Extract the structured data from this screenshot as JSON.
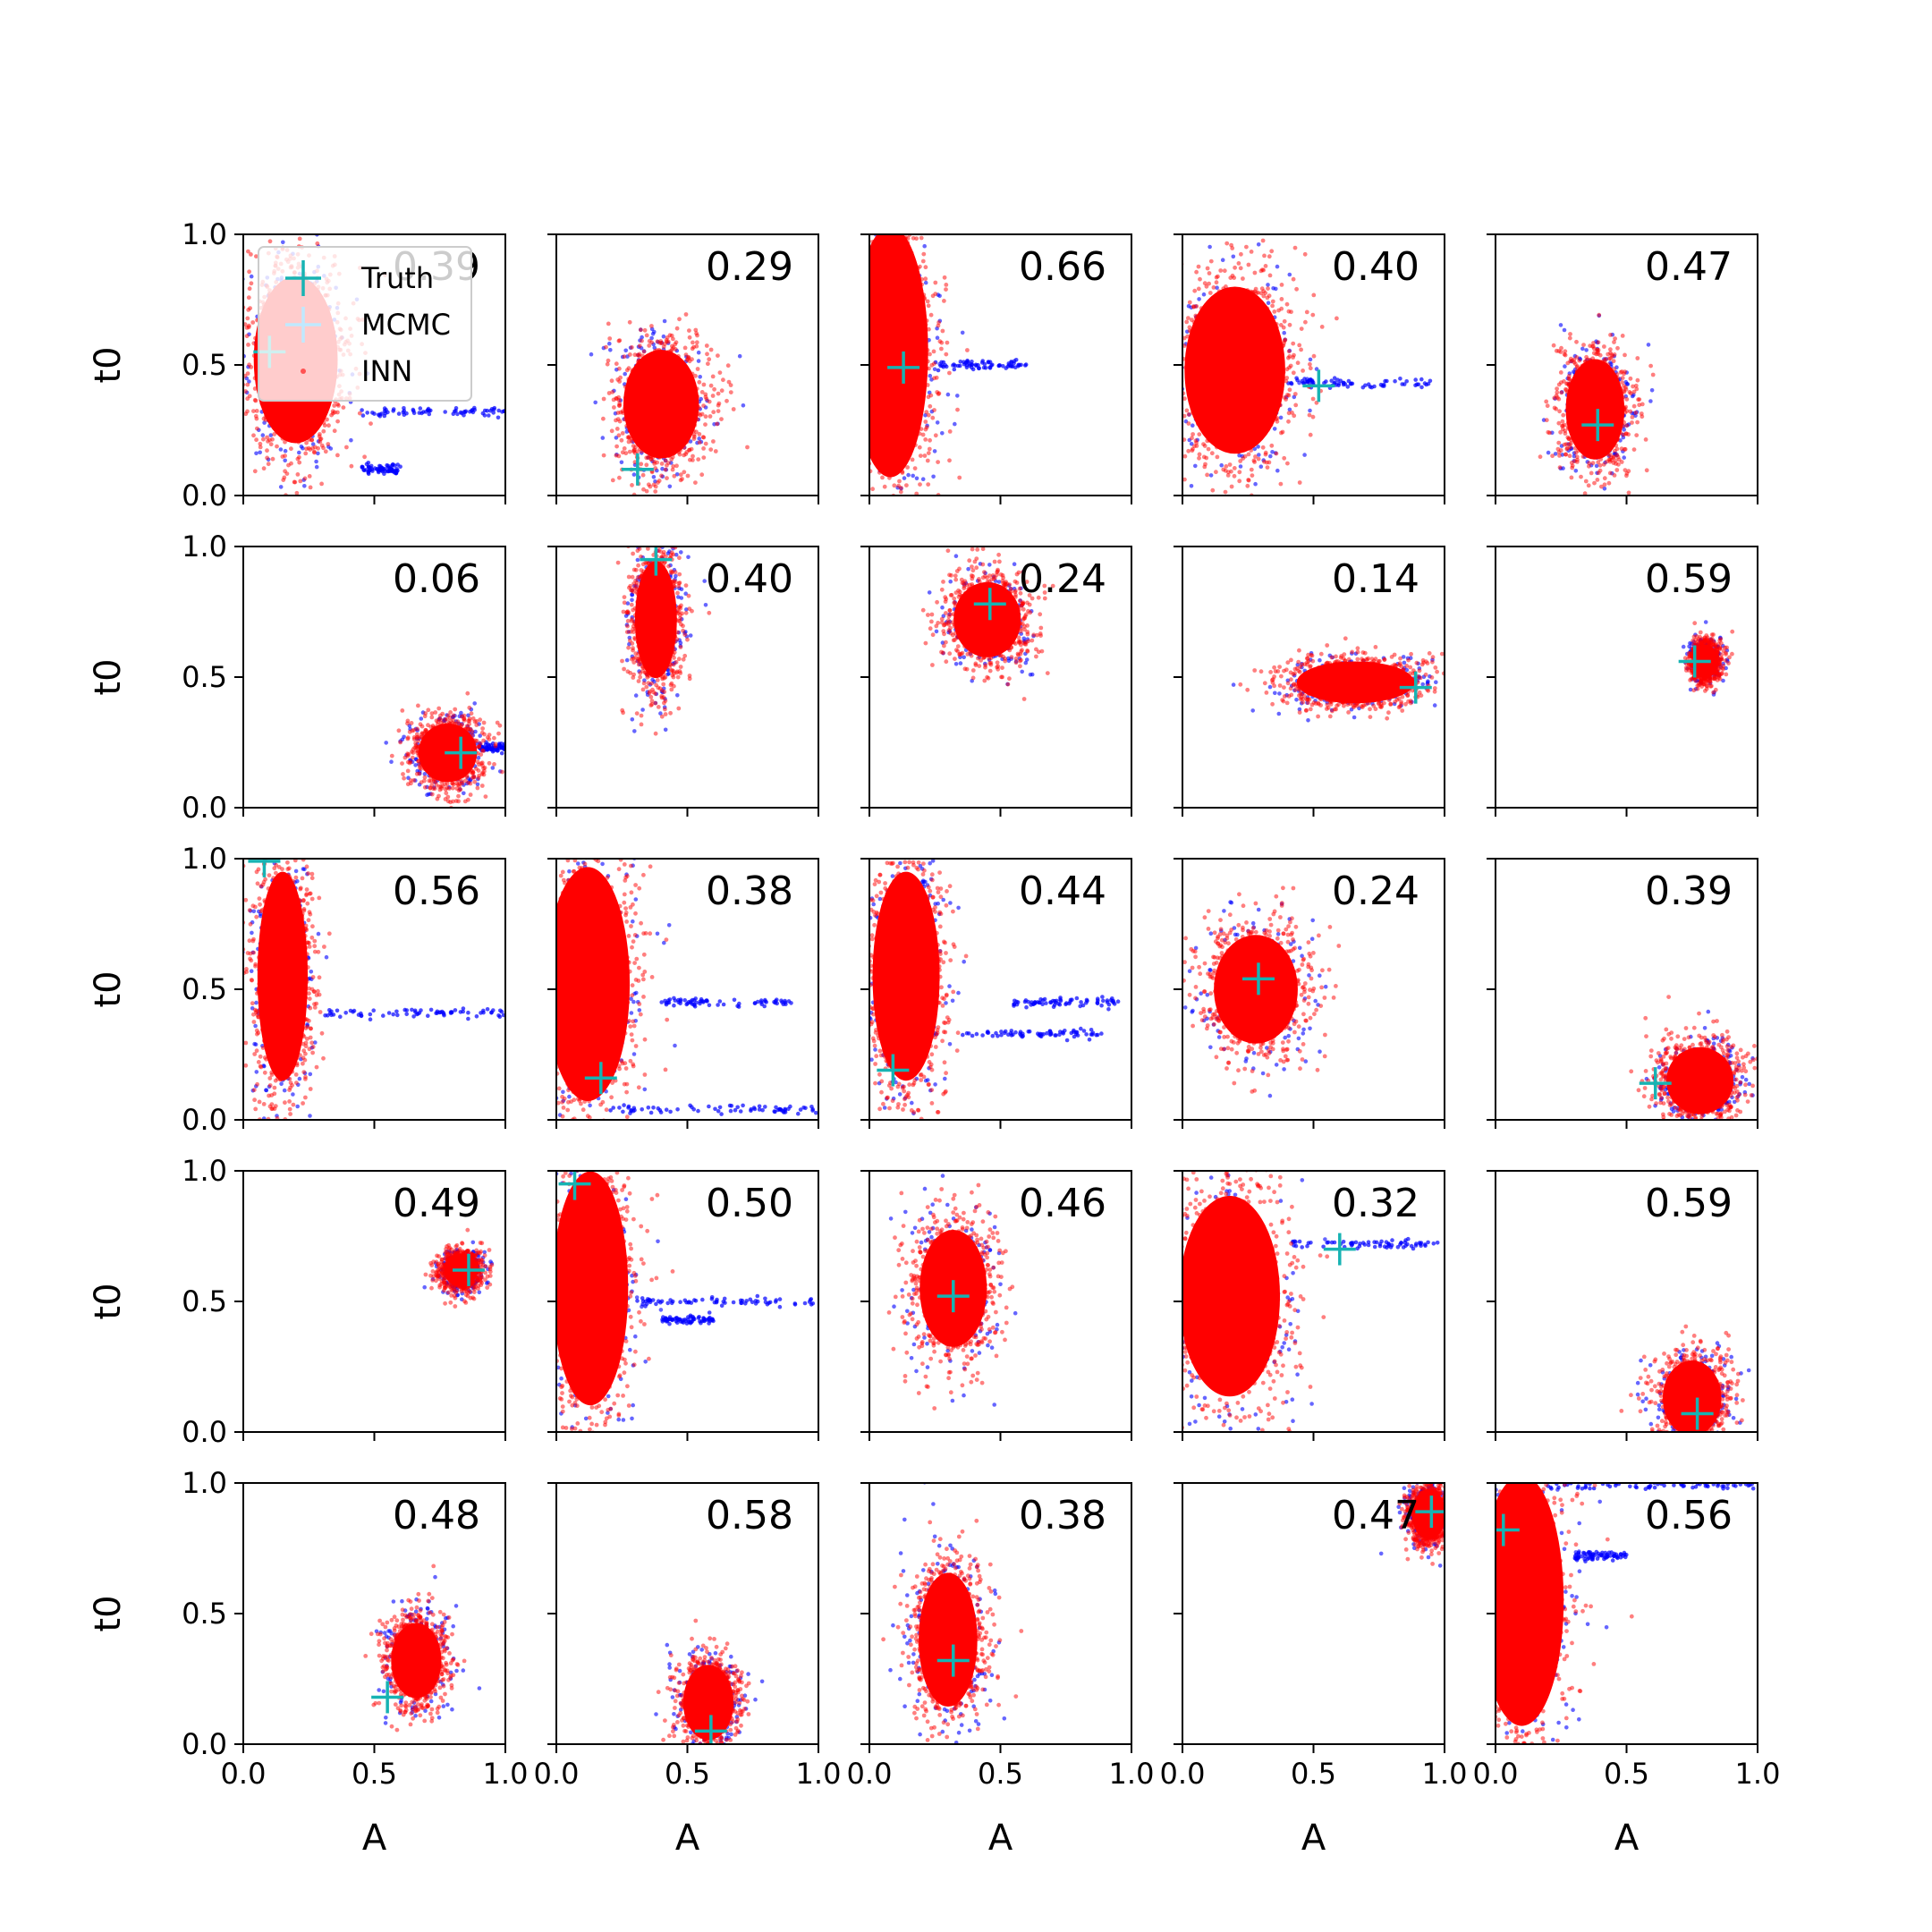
{
  "figure": {
    "grid_rows": 5,
    "grid_cols": 5,
    "colors": {
      "truth": "#17b3b3",
      "mcmc": "#0000ff",
      "inn": "#ff0000",
      "axis": "#000000"
    }
  },
  "legend": {
    "placement": "upper-left of first panel",
    "entries": [
      {
        "label": "Truth",
        "marker": "plus",
        "color": "#17b3b3"
      },
      {
        "label": "MCMC",
        "marker": "plus",
        "color": "#bfe9ff"
      },
      {
        "label": "INN",
        "marker": "dot",
        "color": "#ff0000"
      }
    ]
  },
  "chart_data": {
    "type": "scatter",
    "xlabel": "A",
    "ylabel": "t0",
    "xlim": [
      0,
      1
    ],
    "ylim": [
      0,
      1
    ],
    "xticks": [
      "0.0",
      "0.5",
      "1.0"
    ],
    "yticks": [
      "0.0",
      "0.5",
      "1.0"
    ],
    "series_names": [
      "Truth",
      "MCMC",
      "INN"
    ],
    "panels": [
      {
        "row": 0,
        "col": 0,
        "score": "0.39",
        "truth": [
          0.1,
          0.55
        ],
        "inn": {
          "cx": 0.2,
          "cy": 0.52,
          "sx": 0.1,
          "sy": 0.2
        },
        "mcmc_streaks": [
          {
            "y": 0.32,
            "x0": 0.45,
            "x1": 1.0
          },
          {
            "y": 0.1,
            "x0": 0.45,
            "x1": 0.6
          }
        ]
      },
      {
        "row": 0,
        "col": 1,
        "score": "0.29",
        "truth": [
          0.31,
          0.1
        ],
        "inn": {
          "cx": 0.4,
          "cy": 0.35,
          "sx": 0.09,
          "sy": 0.13
        },
        "mcmc_streaks": []
      },
      {
        "row": 0,
        "col": 2,
        "score": "0.66",
        "truth": [
          0.13,
          0.49
        ],
        "inn": {
          "cx": 0.08,
          "cy": 0.55,
          "sx": 0.09,
          "sy": 0.3
        },
        "mcmc_streaks": [
          {
            "y": 0.5,
            "x0": 0.25,
            "x1": 0.6
          }
        ]
      },
      {
        "row": 0,
        "col": 3,
        "score": "0.40",
        "truth": [
          0.52,
          0.42
        ],
        "inn": {
          "cx": 0.2,
          "cy": 0.48,
          "sx": 0.12,
          "sy": 0.2
        },
        "mcmc_streaks": [
          {
            "y": 0.43,
            "x0": 0.4,
            "x1": 0.95
          }
        ]
      },
      {
        "row": 0,
        "col": 4,
        "score": "0.47",
        "truth": [
          0.39,
          0.27
        ],
        "inn": {
          "cx": 0.38,
          "cy": 0.33,
          "sx": 0.07,
          "sy": 0.12
        },
        "mcmc_streaks": []
      },
      {
        "row": 1,
        "col": 0,
        "score": "0.06",
        "truth": [
          0.83,
          0.21
        ],
        "inn": {
          "cx": 0.78,
          "cy": 0.21,
          "sx": 0.07,
          "sy": 0.07
        },
        "mcmc_streaks": [
          {
            "y": 0.23,
            "x0": 0.9,
            "x1": 1.0
          }
        ]
      },
      {
        "row": 1,
        "col": 1,
        "score": "0.40",
        "truth": [
          0.38,
          0.95
        ],
        "inn": {
          "cx": 0.38,
          "cy": 0.72,
          "sx": 0.05,
          "sy": 0.14
        },
        "mcmc_streaks": []
      },
      {
        "row": 1,
        "col": 2,
        "score": "0.24",
        "truth": [
          0.46,
          0.78
        ],
        "inn": {
          "cx": 0.45,
          "cy": 0.72,
          "sx": 0.08,
          "sy": 0.09
        },
        "mcmc_streaks": []
      },
      {
        "row": 1,
        "col": 3,
        "score": "0.14",
        "truth": [
          0.89,
          0.46
        ],
        "inn": {
          "cx": 0.66,
          "cy": 0.48,
          "sx": 0.14,
          "sy": 0.05
        },
        "mcmc_streaks": []
      },
      {
        "row": 1,
        "col": 4,
        "score": "0.59",
        "truth": [
          0.76,
          0.56
        ],
        "inn": {
          "cx": 0.8,
          "cy": 0.56,
          "sx": 0.03,
          "sy": 0.04
        },
        "mcmc_streaks": []
      },
      {
        "row": 2,
        "col": 0,
        "score": "0.56",
        "truth": [
          0.08,
          0.99
        ],
        "inn": {
          "cx": 0.15,
          "cy": 0.55,
          "sx": 0.06,
          "sy": 0.25
        },
        "mcmc_streaks": [
          {
            "y": 0.41,
            "x0": 0.3,
            "x1": 1.0
          }
        ]
      },
      {
        "row": 2,
        "col": 1,
        "score": "0.38",
        "truth": [
          0.17,
          0.16
        ],
        "inn": {
          "cx": 0.12,
          "cy": 0.52,
          "sx": 0.1,
          "sy": 0.28
        },
        "mcmc_streaks": [
          {
            "y": 0.04,
            "x0": 0.2,
            "x1": 1.0
          },
          {
            "y": 0.45,
            "x0": 0.4,
            "x1": 0.9
          }
        ]
      },
      {
        "row": 2,
        "col": 2,
        "score": "0.44",
        "truth": [
          0.09,
          0.19
        ],
        "inn": {
          "cx": 0.14,
          "cy": 0.55,
          "sx": 0.08,
          "sy": 0.25
        },
        "mcmc_streaks": [
          {
            "y": 0.33,
            "x0": 0.35,
            "x1": 0.9
          },
          {
            "y": 0.45,
            "x0": 0.55,
            "x1": 0.95
          }
        ]
      },
      {
        "row": 2,
        "col": 3,
        "score": "0.24",
        "truth": [
          0.29,
          0.54
        ],
        "inn": {
          "cx": 0.28,
          "cy": 0.5,
          "sx": 0.1,
          "sy": 0.13
        },
        "mcmc_streaks": []
      },
      {
        "row": 2,
        "col": 4,
        "score": "0.39",
        "truth": [
          0.61,
          0.14
        ],
        "inn": {
          "cx": 0.78,
          "cy": 0.15,
          "sx": 0.08,
          "sy": 0.08
        },
        "mcmc_streaks": []
      },
      {
        "row": 3,
        "col": 0,
        "score": "0.49",
        "truth": [
          0.86,
          0.62
        ],
        "inn": {
          "cx": 0.83,
          "cy": 0.62,
          "sx": 0.04,
          "sy": 0.04
        },
        "mcmc_streaks": []
      },
      {
        "row": 3,
        "col": 1,
        "score": "0.50",
        "truth": [
          0.07,
          0.95
        ],
        "inn": {
          "cx": 0.13,
          "cy": 0.55,
          "sx": 0.09,
          "sy": 0.28
        },
        "mcmc_streaks": [
          {
            "y": 0.5,
            "x0": 0.3,
            "x1": 1.0
          },
          {
            "y": 0.43,
            "x0": 0.4,
            "x1": 0.6
          }
        ]
      },
      {
        "row": 3,
        "col": 2,
        "score": "0.46",
        "truth": [
          0.32,
          0.52
        ],
        "inn": {
          "cx": 0.32,
          "cy": 0.55,
          "sx": 0.08,
          "sy": 0.14
        },
        "mcmc_streaks": []
      },
      {
        "row": 3,
        "col": 3,
        "score": "0.32",
        "truth": [
          0.6,
          0.7
        ],
        "inn": {
          "cx": 0.18,
          "cy": 0.52,
          "sx": 0.12,
          "sy": 0.24
        },
        "mcmc_streaks": [
          {
            "y": 0.72,
            "x0": 0.4,
            "x1": 1.0
          }
        ]
      },
      {
        "row": 3,
        "col": 4,
        "score": "0.59",
        "truth": [
          0.77,
          0.07
        ],
        "inn": {
          "cx": 0.75,
          "cy": 0.13,
          "sx": 0.07,
          "sy": 0.09
        },
        "mcmc_streaks": []
      },
      {
        "row": 4,
        "col": 0,
        "score": "0.48",
        "truth": [
          0.55,
          0.18
        ],
        "inn": {
          "cx": 0.66,
          "cy": 0.32,
          "sx": 0.06,
          "sy": 0.09
        },
        "mcmc_streaks": []
      },
      {
        "row": 4,
        "col": 1,
        "score": "0.58",
        "truth": [
          0.59,
          0.05
        ],
        "inn": {
          "cx": 0.58,
          "cy": 0.16,
          "sx": 0.06,
          "sy": 0.09
        },
        "mcmc_streaks": []
      },
      {
        "row": 4,
        "col": 2,
        "score": "0.38",
        "truth": [
          0.32,
          0.32
        ],
        "inn": {
          "cx": 0.3,
          "cy": 0.4,
          "sx": 0.07,
          "sy": 0.16
        },
        "mcmc_streaks": []
      },
      {
        "row": 4,
        "col": 3,
        "score": "0.47",
        "truth": [
          0.95,
          0.89
        ],
        "inn": {
          "cx": 0.94,
          "cy": 0.88,
          "sx": 0.04,
          "sy": 0.06
        },
        "mcmc_streaks": []
      },
      {
        "row": 4,
        "col": 4,
        "score": "0.56",
        "truth": [
          0.03,
          0.82
        ],
        "inn": {
          "cx": 0.1,
          "cy": 0.55,
          "sx": 0.1,
          "sy": 0.3
        },
        "mcmc_streaks": [
          {
            "y": 0.99,
            "x0": 0.2,
            "x1": 1.0
          },
          {
            "y": 0.72,
            "x0": 0.3,
            "x1": 0.5
          }
        ]
      }
    ]
  }
}
